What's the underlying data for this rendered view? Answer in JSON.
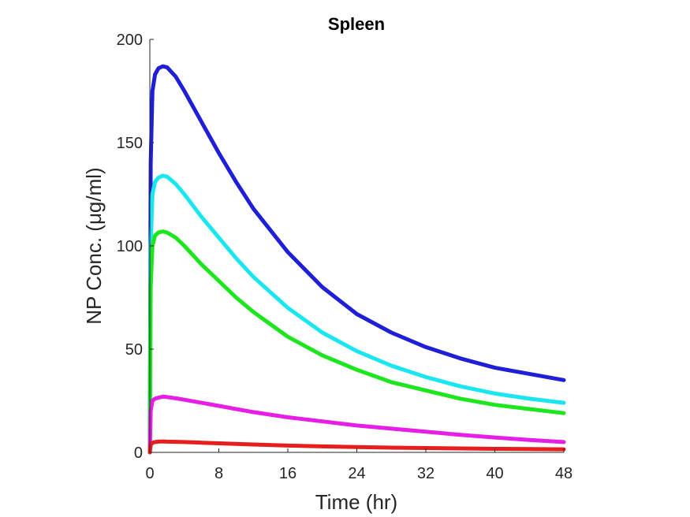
{
  "chart_data": {
    "type": "line",
    "title": "Spleen",
    "xlabel": "Time (hr)",
    "ylabel": "NP Conc. (μg/ml)",
    "xlim": [
      0,
      48
    ],
    "ylim": [
      0,
      200
    ],
    "xticks": [
      0,
      8,
      16,
      24,
      32,
      40,
      48
    ],
    "yticks": [
      0,
      50,
      100,
      150,
      200
    ],
    "grid": false,
    "legend": "none",
    "x": [
      0,
      0.1,
      0.3,
      0.6,
      1,
      1.5,
      2,
      3,
      4,
      6,
      8,
      10,
      12,
      16,
      20,
      24,
      28,
      32,
      36,
      40,
      44,
      48
    ],
    "series": [
      {
        "name": "blue",
        "color": "#1f1fd8",
        "values": [
          0,
          140,
          175,
          183,
          186,
          187,
          186.5,
          182,
          175,
          160,
          145,
          131,
          118,
          97,
          80,
          67,
          58,
          51,
          45.5,
          41,
          38,
          35
        ]
      },
      {
        "name": "cyan",
        "color": "#1ae6f0",
        "values": [
          0,
          100,
          125,
          131,
          133,
          134,
          133.5,
          130,
          125,
          114,
          104,
          94,
          85,
          70,
          58,
          49,
          42,
          36.5,
          32,
          28.5,
          26,
          24
        ]
      },
      {
        "name": "green",
        "color": "#1ee61e",
        "values": [
          0,
          80,
          100,
          105,
          106.5,
          107,
          106.5,
          104,
          100,
          91,
          83,
          75,
          68,
          56,
          47,
          40,
          34,
          30,
          26,
          23,
          21,
          19
        ]
      },
      {
        "name": "magenta",
        "color": "#e61ee6",
        "values": [
          0,
          20,
          25,
          26,
          26.5,
          27,
          26.8,
          26.2,
          25.5,
          24,
          22.5,
          21,
          19.5,
          17,
          15,
          13,
          11.5,
          10,
          8.5,
          7.2,
          6,
          5
        ]
      },
      {
        "name": "red",
        "color": "#e61e1e",
        "values": [
          0,
          3.5,
          4.6,
          5,
          5.2,
          5.3,
          5.2,
          5.1,
          5,
          4.7,
          4.4,
          4.1,
          3.8,
          3.3,
          2.9,
          2.6,
          2.3,
          2.1,
          1.9,
          1.7,
          1.6,
          1.5
        ]
      }
    ]
  }
}
